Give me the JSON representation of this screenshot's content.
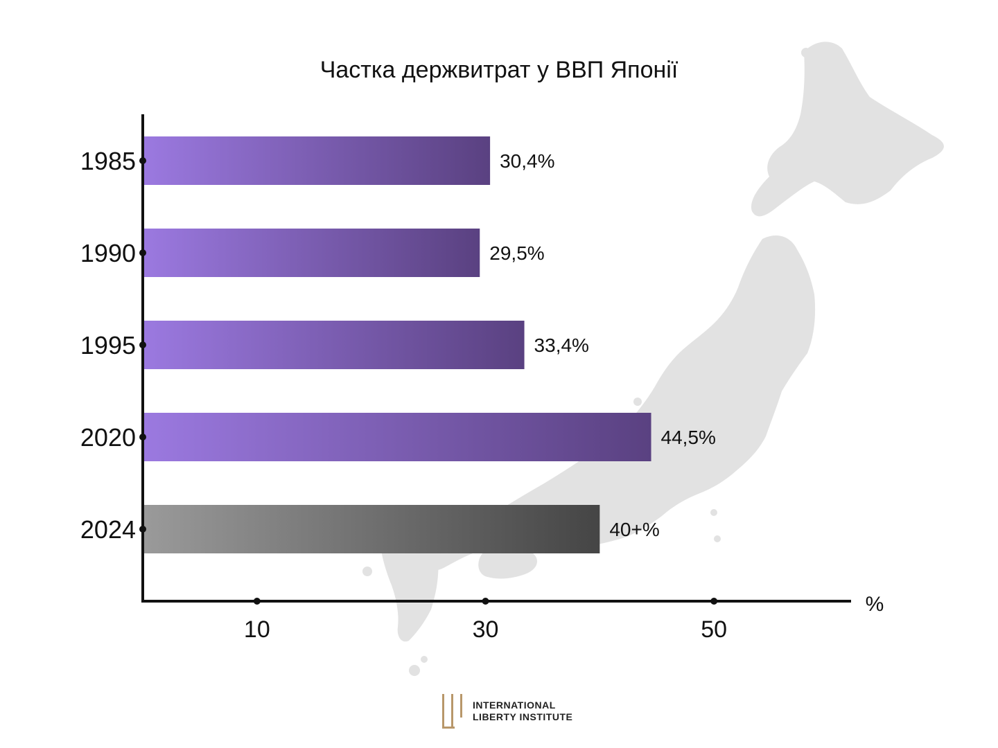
{
  "chart_data": {
    "type": "bar",
    "orientation": "horizontal",
    "title": "Частка держвитрат у ВВП Японії",
    "categories": [
      "1985",
      "1990",
      "1995",
      "2020",
      "2024"
    ],
    "values": [
      30.4,
      29.5,
      33.4,
      44.5,
      40
    ],
    "value_labels": [
      "30,4%",
      "29,5%",
      "33,4%",
      "44,5%",
      "40+%"
    ],
    "x_ticks": [
      10,
      30,
      50
    ],
    "x_unit": "%",
    "xlim": [
      0,
      62
    ],
    "grid": false,
    "colors": {
      "bar_start": "#9b79e0",
      "bar_end": "#5a4181",
      "estimate_start": "#9a9a9a",
      "estimate_end": "#454545",
      "map": "#e2e2e2"
    }
  },
  "background_icon": "japan-map-silhouette",
  "logo": {
    "line1": "International",
    "line2": "Liberty Institute",
    "color": "#b8976a"
  }
}
